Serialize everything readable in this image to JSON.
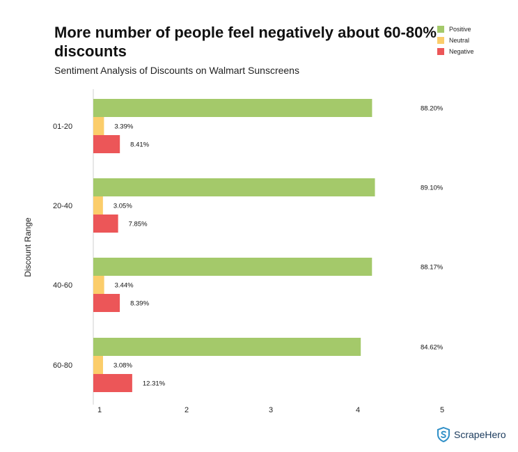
{
  "chart_data": {
    "type": "bar",
    "orientation": "horizontal",
    "title": "More number of people feel negatively about 60-80% discounts",
    "subtitle": "Sentiment Analysis of Discounts on Walmart Sunscreens",
    "ylabel": "Discount Range",
    "xlabel": "",
    "categories": [
      "01-20",
      "20-40",
      "40-60",
      "60-80"
    ],
    "x_ticks": [
      "1",
      "2",
      "3",
      "4",
      "5"
    ],
    "series": [
      {
        "name": "Positive",
        "color": "#a4c96a",
        "values": [
          88.2,
          89.1,
          88.17,
          84.62
        ],
        "labels": [
          "88.20%",
          "89.10%",
          "88.17%",
          "84.62%"
        ]
      },
      {
        "name": "Neutral",
        "color": "#fbcd6b",
        "values": [
          3.39,
          3.05,
          3.44,
          3.08
        ],
        "labels": [
          "3.39%",
          "3.05%",
          "3.44%",
          "3.08%"
        ]
      },
      {
        "name": "Negative",
        "color": "#ec5658",
        "values": [
          8.41,
          7.85,
          8.39,
          12.31
        ],
        "labels": [
          "8.41%",
          "7.85%",
          "8.39%",
          "12.31%"
        ]
      }
    ],
    "legend_position": "top-right",
    "grid": false
  },
  "brand": {
    "name": "ScrapeHero",
    "icon": "scrapehero-logo-icon",
    "color": "#1a3a5c"
  }
}
